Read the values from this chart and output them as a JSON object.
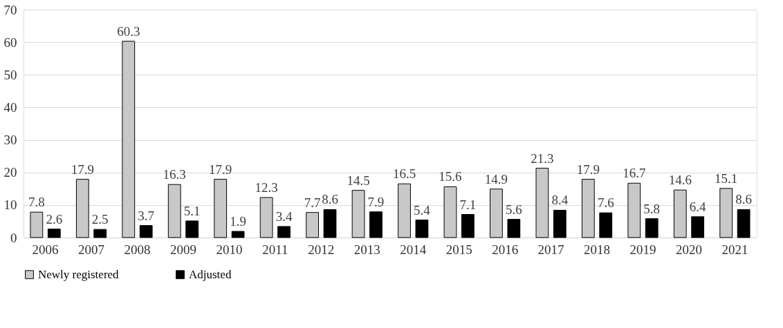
{
  "chart_data": {
    "type": "bar",
    "categories": [
      "2006",
      "2007",
      "2008",
      "2009",
      "2010",
      "2011",
      "2012",
      "2013",
      "2014",
      "2015",
      "2016",
      "2017",
      "2018",
      "2019",
      "2020",
      "2021"
    ],
    "series": [
      {
        "name": "Newly registered",
        "color": "#c8c8c8",
        "values": [
          7.8,
          17.9,
          60.3,
          16.3,
          17.9,
          12.3,
          7.7,
          14.5,
          16.5,
          15.6,
          14.9,
          21.3,
          17.9,
          16.7,
          14.6,
          15.1
        ]
      },
      {
        "name": "Adjusted",
        "color": "#000000",
        "values": [
          2.6,
          2.5,
          3.7,
          5.1,
          1.9,
          3.4,
          8.6,
          7.9,
          5.4,
          7.1,
          5.6,
          8.4,
          7.6,
          5.8,
          6.4,
          8.6
        ]
      }
    ],
    "ylim": [
      0,
      70
    ],
    "yticks": [
      0,
      10,
      20,
      30,
      40,
      50,
      60,
      70
    ],
    "grid": "y",
    "legend": "bottom",
    "data_labels": true
  }
}
